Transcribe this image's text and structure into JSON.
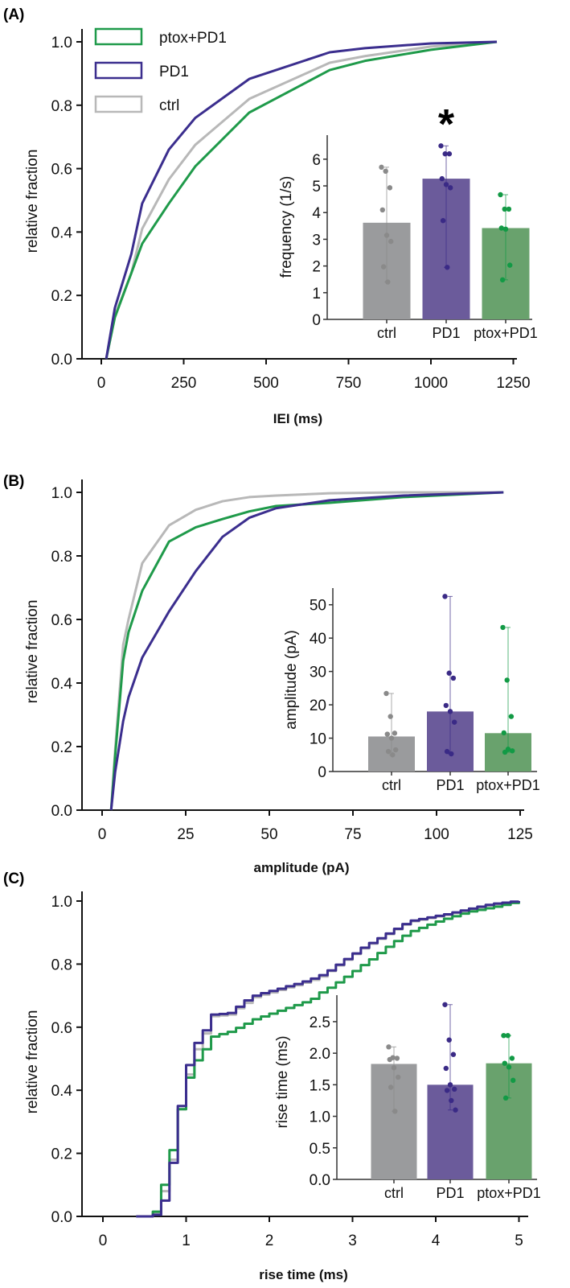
{
  "colors": {
    "ctrl_line": "#b8b8b8",
    "PD1_line": "#3b2e8e",
    "ptox_line": "#1f9a4a",
    "ctrl_bar": "#9a9b9d",
    "PD1_bar": "#6b5b9b",
    "ptox_bar": "#69a26d",
    "ctrl_dot": "#8a8a8a",
    "PD1_dot": "#3a2a86",
    "ptox_dot": "#129a45"
  },
  "legend": {
    "placement": "top-left",
    "entries": [
      "ptox+PD1",
      "PD1",
      "ctrl"
    ]
  },
  "chart_data": [
    {
      "panel_label": "(A)",
      "type": "line",
      "xlabel": "IEI (ms)",
      "ylabel": "relative fraction",
      "xlim": [
        -80,
        1270
      ],
      "ylim": [
        0,
        1.05
      ],
      "xticks": [
        0,
        250,
        500,
        750,
        1000,
        1250
      ],
      "yticks": [
        "0.0",
        "0.2",
        "0.4",
        "0.6",
        "0.8",
        "1.0"
      ],
      "step": false,
      "x": [
        15,
        41,
        91,
        124,
        205,
        285,
        449,
        693,
        800,
        1000,
        1200
      ],
      "series": [
        {
          "name": "ptox+PD1",
          "key": "ptox",
          "values": [
            0,
            0.13,
            0.27,
            0.363,
            0.49,
            0.607,
            0.777,
            0.911,
            0.94,
            0.975,
            1
          ]
        },
        {
          "name": "PD1",
          "key": "PD1",
          "values": [
            0,
            0.16,
            0.33,
            0.49,
            0.66,
            0.76,
            0.883,
            0.967,
            0.98,
            0.995,
            1
          ]
        },
        {
          "name": "ctrl",
          "key": "ctrl",
          "values": [
            0,
            0.135,
            0.27,
            0.41,
            0.566,
            0.675,
            0.82,
            0.934,
            0.955,
            0.985,
            1
          ]
        }
      ],
      "inset": {
        "type": "bar",
        "ylabel": "frequency (1/s)",
        "ylim": [
          0,
          6.9
        ],
        "yticks": [
          "0",
          "1",
          "2",
          "3",
          "4",
          "5",
          "6"
        ],
        "ytick_values": [
          0,
          1,
          2,
          3,
          4,
          5,
          6
        ],
        "categories": [
          "ctrl",
          "PD1",
          "ptox+PD1"
        ],
        "keys": [
          "ctrl",
          "PD1",
          "ptox"
        ],
        "values": [
          3.62,
          5.27,
          3.42
        ],
        "points": [
          [
            5.7,
            5.55,
            4.93,
            4.1,
            3.15,
            2.92,
            1.97,
            1.4
          ],
          [
            6.5,
            6.2,
            6.2,
            5.27,
            5.05,
            4.93,
            3.7,
            1.95
          ],
          [
            4.67,
            4.13,
            4.13,
            3.42,
            3.38,
            2.03,
            1.48
          ]
        ],
        "error": [
          [
            1.4,
            5.7
          ],
          [
            1.95,
            6.5
          ],
          [
            1.48,
            4.67
          ]
        ],
        "significance": {
          "category": "PD1",
          "mark": "*"
        }
      }
    },
    {
      "panel_label": "(B)",
      "type": "line",
      "xlabel": "amplitude (pA)",
      "ylabel": "relative fraction",
      "xlim": [
        -6,
        126
      ],
      "ylim": [
        0,
        1.05
      ],
      "xticks": [
        0,
        25,
        50,
        75,
        100,
        125
      ],
      "yticks": [
        "0.0",
        "0.2",
        "0.4",
        "0.6",
        "0.8",
        "1.0"
      ],
      "step": false,
      "x": [
        2.7,
        3.9,
        6.3,
        7.9,
        12,
        20,
        28,
        36,
        44,
        52,
        68,
        90,
        120
      ],
      "series": [
        {
          "name": "ptox+PD1",
          "key": "ptox",
          "values": [
            0,
            0.17,
            0.47,
            0.56,
            0.69,
            0.845,
            0.89,
            0.916,
            0.94,
            0.957,
            0.967,
            0.985,
            1
          ]
        },
        {
          "name": "PD1",
          "key": "PD1",
          "values": [
            0,
            0.12,
            0.28,
            0.355,
            0.48,
            0.625,
            0.752,
            0.86,
            0.92,
            0.95,
            0.975,
            0.99,
            1
          ]
        },
        {
          "name": "ctrl",
          "key": "ctrl",
          "values": [
            0,
            0.19,
            0.52,
            0.6,
            0.777,
            0.896,
            0.945,
            0.972,
            0.985,
            0.99,
            0.997,
            1,
            1
          ]
        }
      ],
      "inset": {
        "type": "bar",
        "ylabel": "amplitude (pA)",
        "ylim": [
          0,
          55
        ],
        "yticks": [
          "0",
          "10",
          "20",
          "30",
          "40",
          "50"
        ],
        "ytick_values": [
          0,
          10,
          20,
          30,
          40,
          50
        ],
        "categories": [
          "ctrl",
          "PD1",
          "ptox+PD1"
        ],
        "keys": [
          "ctrl",
          "PD1",
          "ptox"
        ],
        "values": [
          10.5,
          18,
          11.5
        ],
        "points": [
          [
            23.4,
            16.5,
            11.5,
            11.2,
            10,
            6.5,
            6,
            5
          ],
          [
            52.5,
            29.5,
            28,
            19.8,
            18,
            14.8,
            6,
            5.3
          ],
          [
            43.2,
            27.4,
            16.5,
            11.6,
            6.7,
            6.2,
            5.8
          ]
        ],
        "error": [
          [
            5,
            23.4
          ],
          [
            5.3,
            52.5
          ],
          [
            5.8,
            43.2
          ]
        ]
      }
    },
    {
      "panel_label": "(C)",
      "type": "line",
      "xlabel": "rise time (ms)",
      "ylabel": "relative fraction",
      "xlim": [
        -0.25,
        5.1
      ],
      "ylim": [
        0,
        1.05
      ],
      "xticks": [
        0,
        1,
        2,
        3,
        4,
        5
      ],
      "yticks": [
        "0.0",
        "0.2",
        "0.4",
        "0.6",
        "0.8",
        "1.0"
      ],
      "step": true,
      "x": [
        0.4,
        0.5,
        0.6,
        0.7,
        0.8,
        0.9,
        1.0,
        1.1,
        1.2,
        1.3,
        1.4,
        1.5,
        1.6,
        1.7,
        1.8,
        1.9,
        2.0,
        2.1,
        2.2,
        2.3,
        2.4,
        2.5,
        2.6,
        2.7,
        2.8,
        2.9,
        3.0,
        3.1,
        3.2,
        3.3,
        3.4,
        3.5,
        3.6,
        3.7,
        3.8,
        3.9,
        4.0,
        4.1,
        4.2,
        4.3,
        4.4,
        4.5,
        4.6,
        4.7,
        4.8,
        4.9,
        5.0
      ],
      "series": [
        {
          "name": "ptox+PD1",
          "key": "ptox",
          "values": [
            0,
            0,
            0.015,
            0.1,
            0.21,
            0.34,
            0.44,
            0.495,
            0.53,
            0.57,
            0.578,
            0.585,
            0.598,
            0.611,
            0.625,
            0.634,
            0.643,
            0.652,
            0.661,
            0.67,
            0.679,
            0.69,
            0.71,
            0.725,
            0.742,
            0.76,
            0.778,
            0.797,
            0.815,
            0.835,
            0.855,
            0.873,
            0.89,
            0.905,
            0.915,
            0.925,
            0.935,
            0.944,
            0.952,
            0.96,
            0.967,
            0.972,
            0.977,
            0.982,
            0.988,
            0.994,
            1.0
          ]
        },
        {
          "name": "PD1",
          "key": "PD1",
          "values": [
            0,
            0,
            0.005,
            0.05,
            0.17,
            0.35,
            0.48,
            0.55,
            0.59,
            0.64,
            0.642,
            0.645,
            0.665,
            0.685,
            0.7,
            0.708,
            0.715,
            0.722,
            0.73,
            0.737,
            0.745,
            0.754,
            0.765,
            0.78,
            0.798,
            0.816,
            0.834,
            0.852,
            0.867,
            0.882,
            0.897,
            0.912,
            0.927,
            0.938,
            0.943,
            0.948,
            0.953,
            0.958,
            0.964,
            0.97,
            0.976,
            0.982,
            0.988,
            0.992,
            0.995,
            0.998,
            1.0
          ]
        },
        {
          "name": "ctrl",
          "key": "ctrl",
          "values": [
            0,
            0,
            0.01,
            0.08,
            0.18,
            0.34,
            0.45,
            0.53,
            0.58,
            0.635,
            0.637,
            0.64,
            0.66,
            0.677,
            0.695,
            0.703,
            0.71,
            0.718,
            0.726,
            0.733,
            0.741,
            0.75,
            0.761,
            0.778,
            0.796,
            0.814,
            0.832,
            0.85,
            0.865,
            0.88,
            0.895,
            0.91,
            0.925,
            0.936,
            0.941,
            0.946,
            0.951,
            0.956,
            0.962,
            0.968,
            0.974,
            0.98,
            0.986,
            0.99,
            0.994,
            0.997,
            1.0
          ]
        }
      ],
      "inset": {
        "type": "bar",
        "ylabel": "rise time (ms)",
        "ylim": [
          0,
          2.92
        ],
        "yticks": [
          "0.0",
          "0.5",
          "1.0",
          "1.5",
          "2.0",
          "2.5"
        ],
        "ytick_values": [
          0,
          0.5,
          1,
          1.5,
          2,
          2.5
        ],
        "categories": [
          "ctrl",
          "PD1",
          "ptox+PD1"
        ],
        "keys": [
          "ctrl",
          "PD1",
          "ptox"
        ],
        "values": [
          1.83,
          1.5,
          1.84
        ],
        "points": [
          [
            2.1,
            1.93,
            1.92,
            1.9,
            1.77,
            1.62,
            1.46,
            1.08
          ],
          [
            2.77,
            2.21,
            1.98,
            1.76,
            1.5,
            1.43,
            1.41,
            1.25,
            1.1
          ],
          [
            2.28,
            2.28,
            1.92,
            1.84,
            1.78,
            1.57,
            1.29
          ]
        ],
        "error": [
          [
            1.08,
            2.1
          ],
          [
            1.1,
            2.77
          ],
          [
            1.29,
            2.28
          ]
        ]
      }
    }
  ]
}
